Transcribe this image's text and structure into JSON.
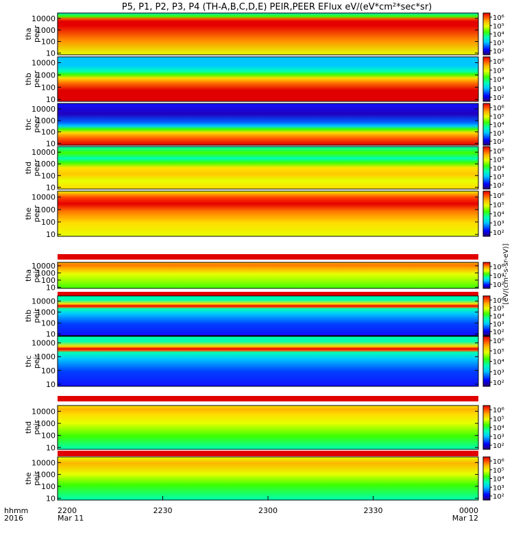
{
  "chart_data": {
    "type": "heatmap",
    "title": "P5, P1, P2, P3, P4 (TH-A,B,C,D,E) PEIR,PEER EFlux eV/(eV*cm²*sec*sr)",
    "x_axis": {
      "row_label_1": "hhmm",
      "row_label_2": "2016",
      "ticks": [
        {
          "time": "2200",
          "date": "Mar 11"
        },
        {
          "time": "2230",
          "date": ""
        },
        {
          "time": "2300",
          "date": ""
        },
        {
          "time": "2330",
          "date": ""
        },
        {
          "time": "0000",
          "date": "Mar 12"
        }
      ]
    },
    "y_axis": {
      "scale": "log",
      "range": [
        7,
        30000
      ],
      "ticks": [
        "10000",
        "1000",
        "100",
        "10"
      ],
      "unit": "eV"
    },
    "colorbar": {
      "scale": "log",
      "tick_labels": [
        "10⁶",
        "10⁵",
        "10⁴",
        "10³",
        "10²"
      ],
      "unit_label": "[eV/(cm²-s-sr-eV)]",
      "colors": [
        "#2a0070",
        "#0000ff",
        "#00c8ff",
        "#00ffb4",
        "#3cff00",
        "#e6ff00",
        "#ffb400",
        "#ff5000",
        "#e10000"
      ]
    },
    "panels": [
      {
        "probe": "tha",
        "species": "peer"
      },
      {
        "probe": "thb",
        "species": "peer"
      },
      {
        "probe": "thc",
        "species": "peer"
      },
      {
        "probe": "thd",
        "species": "peer"
      },
      {
        "probe": "the",
        "species": "peer"
      },
      {
        "probe": "tha",
        "species": "peir"
      },
      {
        "probe": "thb",
        "species": "peir"
      },
      {
        "probe": "thc",
        "species": "peir"
      },
      {
        "probe": "thd",
        "species": "peir"
      },
      {
        "probe": "the",
        "species": "peir"
      }
    ]
  }
}
